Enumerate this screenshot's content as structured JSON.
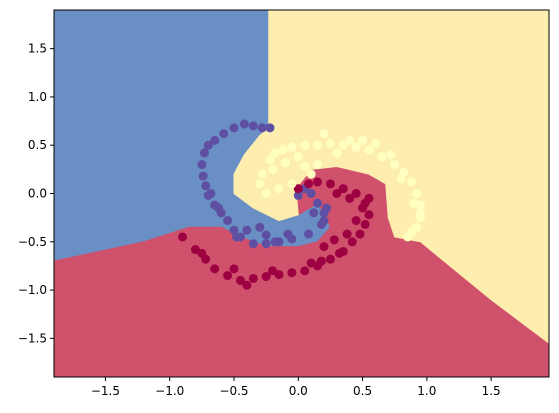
{
  "chart_data": {
    "type": "scatter",
    "title": "",
    "xlabel": "",
    "ylabel": "",
    "xlim": [
      -1.9,
      1.95
    ],
    "ylim": [
      -1.9,
      1.9
    ],
    "grid": false,
    "xticks": [
      -1.5,
      -1.0,
      -0.5,
      0.0,
      0.5,
      1.0,
      1.5
    ],
    "xtick_labels": [
      "−1.5",
      "−1.0",
      "−0.5",
      "0.0",
      "0.5",
      "1.0",
      "1.5"
    ],
    "yticks": [
      1.5,
      1.0,
      0.5,
      0.0,
      -0.5,
      -1.0,
      -1.5
    ],
    "ytick_labels": [
      "1.5",
      "1.0",
      "0.5",
      "0.0",
      "−0.5",
      "−1.0",
      "−1.5"
    ],
    "region_colors": {
      "class_0": "#6a8fc4",
      "class_1": "#cf516c",
      "class_2": "#fdeeaf"
    },
    "point_colors": {
      "class_0": "#5e4fa2",
      "class_1": "#9e0142",
      "class_2": "#ffffbf"
    },
    "decision_regions": {
      "class_0": [
        [
          -1.9,
          1.9
        ],
        [
          -0.23,
          1.9
        ],
        [
          -0.23,
          0.68
        ],
        [
          -0.3,
          0.6
        ],
        [
          -0.42,
          0.4
        ],
        [
          -0.5,
          0.2
        ],
        [
          -0.5,
          0.0
        ],
        [
          -0.35,
          -0.15
        ],
        [
          -0.15,
          -0.28
        ],
        [
          0.0,
          -0.22
        ],
        [
          0.15,
          -0.1
        ],
        [
          0.2,
          -0.2
        ],
        [
          0.25,
          -0.35
        ],
        [
          0.15,
          -0.5
        ],
        [
          0.0,
          -0.55
        ],
        [
          -0.25,
          -0.55
        ],
        [
          -0.45,
          -0.45
        ],
        [
          -0.6,
          -0.35
        ],
        [
          -0.85,
          -0.35
        ],
        [
          -1.2,
          -0.5
        ],
        [
          -1.9,
          -0.7
        ]
      ],
      "class_1": [
        [
          -1.9,
          -0.7
        ],
        [
          -1.2,
          -0.5
        ],
        [
          -0.85,
          -0.35
        ],
        [
          -0.6,
          -0.35
        ],
        [
          -0.45,
          -0.45
        ],
        [
          -0.25,
          -0.55
        ],
        [
          0.0,
          -0.55
        ],
        [
          0.15,
          -0.5
        ],
        [
          0.25,
          -0.35
        ],
        [
          0.2,
          -0.2
        ],
        [
          0.15,
          -0.1
        ],
        [
          0.0,
          -0.22
        ],
        [
          -0.02,
          0.05
        ],
        [
          0.1,
          0.25
        ],
        [
          0.3,
          0.28
        ],
        [
          0.55,
          0.2
        ],
        [
          0.68,
          0.1
        ],
        [
          0.7,
          -0.25
        ],
        [
          0.75,
          -0.45
        ],
        [
          0.95,
          -0.5
        ],
        [
          1.5,
          -1.1
        ],
        [
          1.95,
          -1.55
        ],
        [
          1.95,
          -1.9
        ],
        [
          -1.9,
          -1.9
        ]
      ],
      "class_2": [
        [
          -0.23,
          1.9
        ],
        [
          1.95,
          1.9
        ],
        [
          1.95,
          -1.55
        ],
        [
          1.5,
          -1.1
        ],
        [
          0.95,
          -0.5
        ],
        [
          0.75,
          -0.45
        ],
        [
          0.7,
          -0.25
        ],
        [
          0.68,
          0.1
        ],
        [
          0.55,
          0.2
        ],
        [
          0.3,
          0.28
        ],
        [
          0.1,
          0.25
        ],
        [
          -0.02,
          0.05
        ],
        [
          0.0,
          -0.22
        ],
        [
          -0.15,
          -0.28
        ],
        [
          -0.35,
          -0.15
        ],
        [
          -0.5,
          0.0
        ],
        [
          -0.5,
          0.2
        ],
        [
          -0.42,
          0.4
        ],
        [
          -0.3,
          0.6
        ],
        [
          -0.23,
          0.68
        ]
      ]
    },
    "series": [
      {
        "class": "class_0",
        "x": [
          0.0,
          0.05,
          0.1,
          0.15,
          0.2,
          0.18,
          0.08,
          -0.05,
          -0.15,
          -0.25,
          -0.35,
          -0.45,
          -0.5,
          -0.55,
          -0.6,
          -0.65,
          -0.7,
          -0.72,
          -0.74,
          -0.75,
          -0.73,
          -0.7,
          -0.65,
          -0.58,
          -0.5,
          -0.42,
          -0.35,
          -0.28,
          -0.22,
          0.12,
          0.2,
          0.22,
          -0.08,
          -0.3,
          -0.68,
          -0.62,
          -0.48,
          -0.4,
          -0.25,
          -0.18
        ],
        "y": [
          -0.02,
          0.05,
          0.0,
          -0.1,
          -0.2,
          -0.32,
          -0.42,
          -0.47,
          -0.5,
          -0.52,
          -0.52,
          -0.45,
          -0.38,
          -0.28,
          -0.2,
          -0.12,
          -0.02,
          0.08,
          0.18,
          0.3,
          0.42,
          0.5,
          0.55,
          0.62,
          0.68,
          0.72,
          0.7,
          0.68,
          0.68,
          -0.2,
          -0.28,
          -0.15,
          -0.42,
          -0.35,
          0.0,
          -0.15,
          -0.45,
          -0.38,
          -0.43,
          -0.5
        ]
      },
      {
        "class": "class_1",
        "x": [
          0.0,
          0.08,
          0.15,
          0.25,
          0.35,
          0.45,
          0.52,
          0.55,
          0.52,
          0.48,
          0.42,
          0.35,
          0.25,
          0.15,
          0.05,
          -0.05,
          -0.15,
          -0.25,
          -0.35,
          -0.45,
          -0.55,
          -0.65,
          -0.72,
          -0.8,
          -0.9,
          0.3,
          0.4,
          0.5,
          0.45,
          0.38,
          0.2,
          0.1,
          -0.2,
          -0.4,
          -0.5,
          -0.75,
          0.55,
          0.28,
          0.32,
          0.18
        ],
        "y": [
          0.05,
          0.1,
          0.12,
          0.1,
          0.05,
          0.0,
          -0.1,
          -0.22,
          -0.32,
          -0.42,
          -0.5,
          -0.6,
          -0.68,
          -0.75,
          -0.8,
          -0.82,
          -0.84,
          -0.86,
          -0.88,
          -0.9,
          -0.85,
          -0.78,
          -0.68,
          -0.58,
          -0.45,
          0.0,
          -0.05,
          -0.15,
          -0.28,
          -0.42,
          -0.55,
          -0.72,
          -0.8,
          -0.95,
          -0.78,
          -0.62,
          -0.05,
          -0.48,
          -0.62,
          -0.7
        ]
      },
      {
        "class": "class_2",
        "x": [
          -0.22,
          -0.18,
          -0.12,
          -0.05,
          0.05,
          0.15,
          0.25,
          0.35,
          0.45,
          0.55,
          0.65,
          0.75,
          0.82,
          0.88,
          0.92,
          0.95,
          0.95,
          0.92,
          0.85,
          -0.28,
          -0.3,
          -0.25,
          -0.15,
          -0.05,
          0.05,
          0.15,
          0.3,
          0.6,
          0.72,
          0.9,
          0.4,
          0.2,
          -0.1,
          -0.2,
          0.0,
          0.1,
          0.5,
          0.8,
          0.95,
          0.88
        ],
        "y": [
          0.35,
          0.42,
          0.45,
          0.48,
          0.5,
          0.5,
          0.52,
          0.5,
          0.48,
          0.45,
          0.38,
          0.3,
          0.22,
          0.12,
          0.0,
          -0.12,
          -0.25,
          -0.35,
          -0.45,
          0.2,
          0.1,
          0.0,
          0.05,
          0.1,
          0.28,
          0.3,
          0.42,
          0.52,
          0.4,
          -0.1,
          0.55,
          0.62,
          0.32,
          0.25,
          0.38,
          0.2,
          0.55,
          0.15,
          -0.2,
          -0.4
        ]
      }
    ]
  }
}
